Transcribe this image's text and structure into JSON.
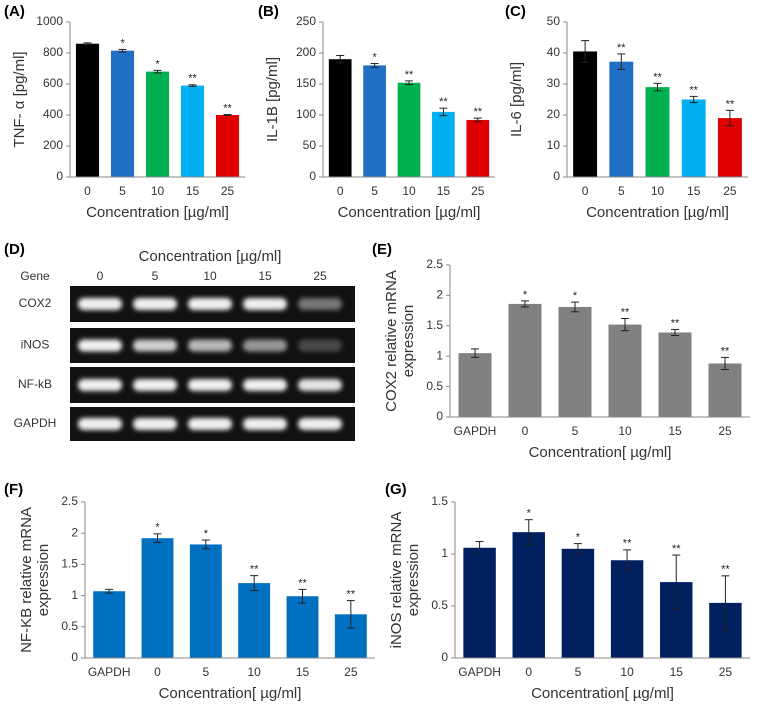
{
  "chart_data": [
    {
      "type": "bar",
      "panel": "(A)",
      "ylabel": [
        "TNF- α [pg/ml]"
      ],
      "xlabel": "Concentration [µg/ml]",
      "categories": [
        "0",
        "5",
        "10",
        "15",
        "25"
      ],
      "values": [
        860,
        815,
        680,
        590,
        400
      ],
      "errors": [
        5,
        8,
        8,
        5,
        3
      ],
      "significance": [
        null,
        "*",
        "*",
        "**",
        "**"
      ],
      "colors": [
        "#000000",
        "#1f6fc4",
        "#00b050",
        "#00b0f0",
        "#e00000"
      ],
      "ylim": [
        0,
        1000
      ],
      "yticks": [
        0,
        200,
        400,
        600,
        800,
        1000
      ]
    },
    {
      "type": "bar",
      "panel": "(B)",
      "ylabel": [
        "IL-1B [pg/ml]"
      ],
      "xlabel": "Concentration [µg/ml]",
      "categories": [
        "0",
        "5",
        "10",
        "15",
        "25"
      ],
      "values": [
        190,
        180,
        152,
        105,
        92
      ],
      "errors": [
        6,
        3,
        3,
        6,
        3
      ],
      "significance": [
        null,
        "*",
        "**",
        "**",
        "**"
      ],
      "colors": [
        "#000000",
        "#1f6fc4",
        "#00b050",
        "#00b0f0",
        "#e00000"
      ],
      "ylim": [
        0,
        250
      ],
      "yticks": [
        0,
        50,
        100,
        150,
        200,
        250
      ]
    },
    {
      "type": "bar",
      "panel": "(C)",
      "ylabel": [
        "IL-6 [pg/ml]"
      ],
      "xlabel": "Concentration [µg/ml]",
      "categories": [
        "0",
        "5",
        "10",
        "15",
        "25"
      ],
      "values": [
        40.5,
        37.2,
        29,
        25,
        19
      ],
      "errors": [
        3.5,
        2.5,
        1.2,
        1,
        2.5
      ],
      "significance": [
        null,
        "**",
        "**",
        "**",
        "**"
      ],
      "colors": [
        "#000000",
        "#1f6fc4",
        "#00b050",
        "#00b0f0",
        "#e00000"
      ],
      "ylim": [
        0,
        50
      ],
      "yticks": [
        0,
        10,
        20,
        30,
        40,
        50
      ]
    },
    {
      "type": "bar",
      "panel": "(E)",
      "ylabel": [
        "COX2 relative mRNA",
        "expression"
      ],
      "xlabel": "Concentration[  µg/ml]",
      "categories": [
        "GAPDH",
        "0",
        "5",
        "10",
        "15",
        "25"
      ],
      "values": [
        1.05,
        1.86,
        1.81,
        1.52,
        1.39,
        0.88
      ],
      "errors": [
        0.07,
        0.05,
        0.08,
        0.1,
        0.05,
        0.1
      ],
      "significance": [
        null,
        "*",
        "*",
        "**",
        "**",
        "**"
      ],
      "color": "#808080",
      "ylim": [
        0,
        2.5
      ],
      "yticks": [
        0,
        0.5,
        1,
        1.5,
        2,
        2.5
      ]
    },
    {
      "type": "bar",
      "panel": "(F)",
      "ylabel": [
        "NF-KB relative mRNA",
        "expression"
      ],
      "xlabel": "Concentration[  µg/ml]",
      "categories": [
        "GAPDH",
        "0",
        "5",
        "10",
        "15",
        "25"
      ],
      "values": [
        1.07,
        1.92,
        1.82,
        1.2,
        0.99,
        0.7
      ],
      "errors": [
        0.03,
        0.07,
        0.07,
        0.12,
        0.11,
        0.22
      ],
      "significance": [
        null,
        "*",
        "*",
        "**",
        "**",
        "**"
      ],
      "color": "#0070c0",
      "ylim": [
        0,
        2.5
      ],
      "yticks": [
        0,
        0.5,
        1,
        1.5,
        2,
        2.5
      ]
    },
    {
      "type": "bar",
      "panel": "(G)",
      "ylabel": [
        "iNOS relative mRNA",
        "expression"
      ],
      "xlabel": "Concentration[  µg/ml]",
      "categories": [
        "GAPDH",
        "0",
        "5",
        "10",
        "15",
        "25"
      ],
      "values": [
        1.06,
        1.21,
        1.05,
        0.94,
        0.73,
        0.53
      ],
      "errors": [
        0.06,
        0.12,
        0.05,
        0.1,
        0.26,
        0.26
      ],
      "significance": [
        null,
        "*",
        "*",
        "**",
        "**",
        "**"
      ],
      "color": "#002060",
      "ylim": [
        0,
        1.5
      ],
      "yticks": [
        0,
        0.5,
        1,
        1.5
      ]
    }
  ],
  "gel": {
    "panel": "(D)",
    "title": "Concentration [µg/ml]",
    "gene_header": "Gene",
    "lanes": [
      "0",
      "5",
      "10",
      "15",
      "25"
    ],
    "genes": [
      "COX2",
      "iNOS",
      "NF-kB",
      "GAPDH"
    ]
  }
}
